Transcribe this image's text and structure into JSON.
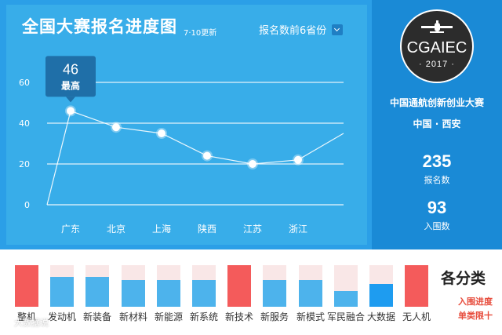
{
  "header": {
    "title": "全国大赛报名进度图",
    "update_note": "7·10更新",
    "filter_label": "报名数前6省份"
  },
  "chart_data": [
    {
      "type": "line",
      "title": "全国大赛报名进度图",
      "categories": [
        "广东",
        "北京",
        "上海",
        "陕西",
        "江苏",
        "浙江"
      ],
      "values": [
        46,
        38,
        35,
        24,
        20,
        22
      ],
      "y_ticks": [
        0,
        20,
        40,
        60
      ],
      "ylim": [
        0,
        60
      ],
      "grid": true,
      "highlight": {
        "category": "广东",
        "value": "46",
        "label": "最高"
      }
    },
    {
      "type": "bar",
      "title": "各分类",
      "categories": [
        "整机",
        "发动机",
        "新装备",
        "新材料",
        "新能源",
        "新系统",
        "新技术",
        "新服务",
        "新模式",
        "军民融合",
        "大数据",
        "无人机"
      ],
      "values": [
        1.0,
        0.72,
        0.72,
        0.64,
        0.64,
        0.64,
        1.0,
        0.64,
        0.64,
        0.38,
        0.55,
        1.0
      ],
      "status": [
        "done",
        "progress",
        "progress",
        "progress",
        "progress",
        "progress",
        "done",
        "progress",
        "progress",
        "progress",
        "progress",
        "done"
      ],
      "legend": [
        "入围进度",
        "单类限十"
      ]
    }
  ],
  "sidebar": {
    "logo_text": "CGAIEC",
    "logo_year": "· 2017 ·",
    "event_name": "中国通航创新创业大赛",
    "location": "中国 · 西安",
    "registered_value": "235",
    "registered_label": "报名数",
    "shortlisted_value": "93",
    "shortlisted_label": "入围数"
  },
  "watermark": "大数据说",
  "colors": {
    "panel_blue": "#38ade9",
    "side_blue": "#1a8ad6",
    "bar_blue": "#4db3ec",
    "bar_blue_active": "#1e9cf0",
    "bar_red": "#f45b5b",
    "bar_track": "#f9e7e7",
    "legend_red": "#e74c3c"
  }
}
